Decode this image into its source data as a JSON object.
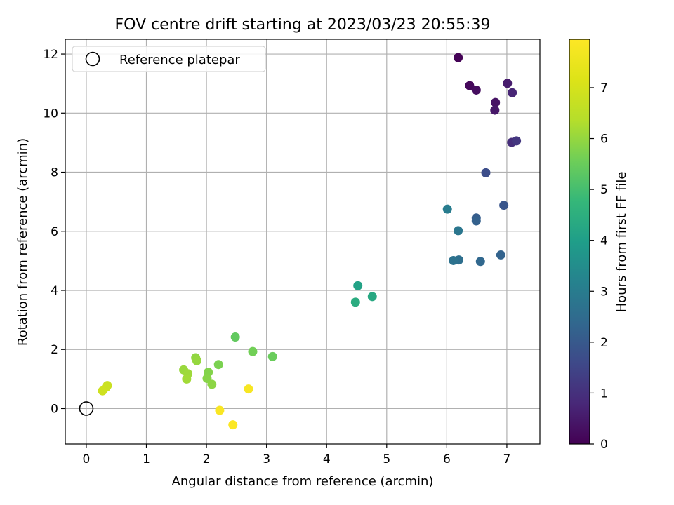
{
  "chart_data": {
    "type": "scatter",
    "title": "FOV centre drift starting at 2023/03/23 20:55:39",
    "xlabel": "Angular distance from reference (arcmin)",
    "ylabel": "Rotation from reference (arcmin)",
    "xlim": [
      -0.35,
      7.55
    ],
    "ylim": [
      -1.2,
      12.5
    ],
    "x_ticks": [
      0,
      1,
      2,
      3,
      4,
      5,
      6,
      7
    ],
    "y_ticks": [
      0,
      2,
      4,
      6,
      8,
      10,
      12
    ],
    "grid": true,
    "legend": {
      "placement": "upper-left",
      "entries": [
        {
          "label": "Reference platepar",
          "marker": "open-circle"
        }
      ]
    },
    "reference_point": {
      "x": 0,
      "y": 0
    },
    "colorbar": {
      "label": "Hours from first FF file",
      "colormap": "viridis",
      "range": [
        0,
        7.95
      ],
      "ticks": [
        0,
        1,
        2,
        3,
        4,
        5,
        6,
        7
      ]
    },
    "points": [
      {
        "x": 6.19,
        "y": 11.88,
        "hours": 0.05
      },
      {
        "x": 6.38,
        "y": 10.93,
        "hours": 0.15
      },
      {
        "x": 6.49,
        "y": 10.78,
        "hours": 0.25
      },
      {
        "x": 6.81,
        "y": 10.36,
        "hours": 0.35
      },
      {
        "x": 6.8,
        "y": 10.1,
        "hours": 0.45
      },
      {
        "x": 7.01,
        "y": 11.01,
        "hours": 0.55
      },
      {
        "x": 7.09,
        "y": 10.69,
        "hours": 0.75
      },
      {
        "x": 7.08,
        "y": 9.01,
        "hours": 0.95
      },
      {
        "x": 7.16,
        "y": 9.06,
        "hours": 1.15
      },
      {
        "x": 6.65,
        "y": 7.98,
        "hours": 1.7
      },
      {
        "x": 6.95,
        "y": 6.88,
        "hours": 1.9
      },
      {
        "x": 6.49,
        "y": 6.45,
        "hours": 2.1
      },
      {
        "x": 6.49,
        "y": 6.35,
        "hours": 2.2
      },
      {
        "x": 6.9,
        "y": 5.2,
        "hours": 2.25
      },
      {
        "x": 6.56,
        "y": 4.98,
        "hours": 2.4
      },
      {
        "x": 6.2,
        "y": 5.03,
        "hours": 2.6
      },
      {
        "x": 6.11,
        "y": 5.01,
        "hours": 2.7
      },
      {
        "x": 6.19,
        "y": 6.02,
        "hours": 2.8
      },
      {
        "x": 6.01,
        "y": 6.75,
        "hours": 3.0
      },
      {
        "x": 4.52,
        "y": 4.16,
        "hours": 4.1
      },
      {
        "x": 4.76,
        "y": 3.79,
        "hours": 4.3
      },
      {
        "x": 4.48,
        "y": 3.6,
        "hours": 4.4
      },
      {
        "x": 2.48,
        "y": 2.42,
        "hours": 5.4
      },
      {
        "x": 3.1,
        "y": 1.76,
        "hours": 5.5
      },
      {
        "x": 2.77,
        "y": 1.93,
        "hours": 5.6
      },
      {
        "x": 2.2,
        "y": 1.49,
        "hours": 5.7
      },
      {
        "x": 2.03,
        "y": 1.23,
        "hours": 5.8
      },
      {
        "x": 2.01,
        "y": 1.02,
        "hours": 5.85
      },
      {
        "x": 2.09,
        "y": 0.82,
        "hours": 5.9
      },
      {
        "x": 1.82,
        "y": 1.72,
        "hours": 5.95
      },
      {
        "x": 1.84,
        "y": 1.62,
        "hours": 6.0
      },
      {
        "x": 1.62,
        "y": 1.31,
        "hours": 6.05
      },
      {
        "x": 1.69,
        "y": 1.18,
        "hours": 6.1
      },
      {
        "x": 1.67,
        "y": 1.0,
        "hours": 6.15
      },
      {
        "x": 0.35,
        "y": 0.78,
        "hours": 6.75
      },
      {
        "x": 0.33,
        "y": 0.72,
        "hours": 6.8
      },
      {
        "x": 0.27,
        "y": 0.6,
        "hours": 6.85
      },
      {
        "x": 2.7,
        "y": 0.66,
        "hours": 7.8
      },
      {
        "x": 2.22,
        "y": -0.06,
        "hours": 7.85
      },
      {
        "x": 2.44,
        "y": -0.55,
        "hours": 7.9
      }
    ]
  }
}
